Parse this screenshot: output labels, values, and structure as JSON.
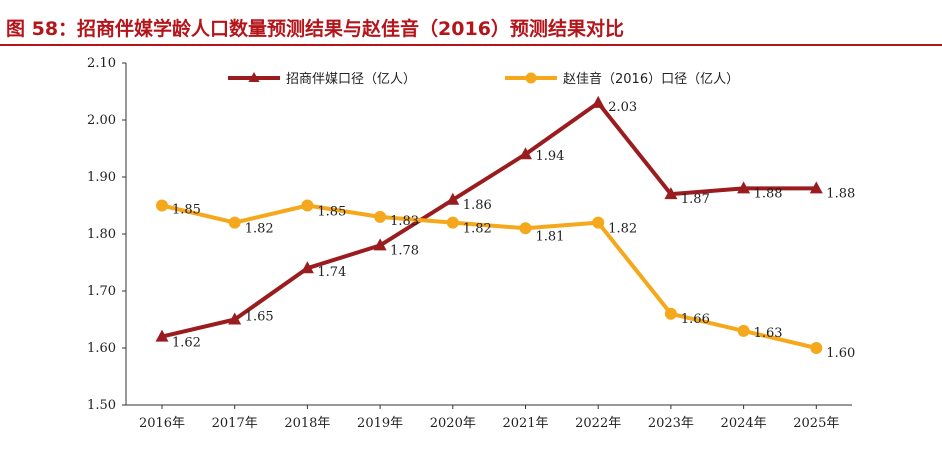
{
  "figure_title": "图 58：招商伴媒学龄人口数量预测结果与赵佳音（2016）预测结果对比",
  "colors": {
    "title": "#b4151b",
    "series1": "#9b1c1f",
    "series2": "#f5a81c",
    "axis": "#333333",
    "text": "#222222"
  },
  "chart_data": {
    "type": "line",
    "title": "图 58：招商伴媒学龄人口数量预测结果与赵佳音（2016）预测结果对比",
    "xlabel": "",
    "ylabel": "",
    "categories": [
      "2016年",
      "2017年",
      "2018年",
      "2019年",
      "2020年",
      "2021年",
      "2022年",
      "2023年",
      "2024年",
      "2025年"
    ],
    "ylim": [
      1.5,
      2.1
    ],
    "yticks": [
      "1.50",
      "1.60",
      "1.70",
      "1.80",
      "1.90",
      "2.00",
      "2.10"
    ],
    "grid": false,
    "legend": "top",
    "series": [
      {
        "name": "招商伴媒口径（亿人）",
        "marker": "triangle",
        "color": "#9b1c1f",
        "values": [
          1.62,
          1.65,
          1.74,
          1.78,
          1.86,
          1.94,
          2.03,
          1.87,
          1.88,
          1.88
        ],
        "labels": [
          "1.62",
          "1.65",
          "1.74",
          "1.78",
          "1.86",
          "1.94",
          "2.03",
          "1.87",
          "1.88",
          "1.88"
        ]
      },
      {
        "name": "赵佳音（2016）口径（亿人）",
        "marker": "circle",
        "color": "#f5a81c",
        "values": [
          1.85,
          1.82,
          1.85,
          1.83,
          1.82,
          1.81,
          1.82,
          1.66,
          1.63,
          1.6
        ],
        "labels": [
          "1.85",
          "1.82",
          "1.85",
          "1.83",
          "1.82",
          "1.81",
          "1.82",
          "1.66",
          "1.63",
          "1.60"
        ]
      }
    ]
  }
}
